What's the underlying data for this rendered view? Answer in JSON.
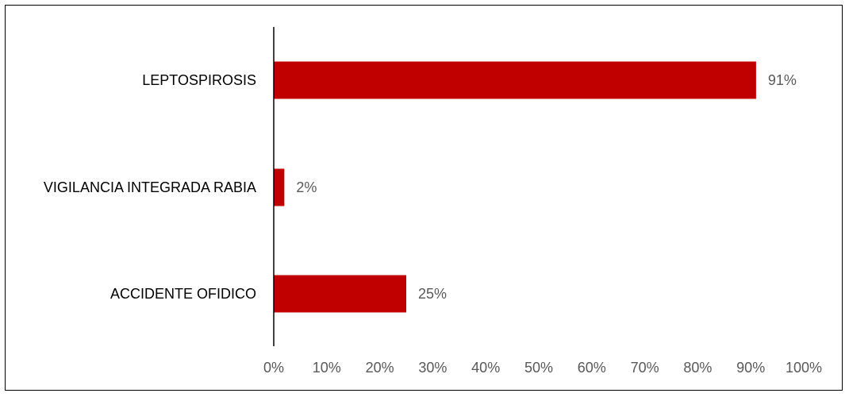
{
  "chart_data": {
    "type": "bar",
    "orientation": "horizontal",
    "categories": [
      "LEPTOSPIROSIS",
      "VIGILANCIA INTEGRADA RABIA",
      "ACCIDENTE OFIDICO"
    ],
    "values": [
      91,
      2,
      25
    ],
    "data_labels": [
      "91%",
      "2%",
      "25%"
    ],
    "xlim": [
      0,
      100
    ],
    "x_ticks": [
      0,
      10,
      20,
      30,
      40,
      50,
      60,
      70,
      80,
      90,
      100
    ],
    "x_tick_labels": [
      "0%",
      "10%",
      "20%",
      "30%",
      "40%",
      "50%",
      "60%",
      "70%",
      "80%",
      "90%",
      "100%"
    ],
    "title": "",
    "xlabel": "",
    "ylabel": "",
    "grid": false,
    "legend": "none",
    "bar_color": "#C00000"
  }
}
